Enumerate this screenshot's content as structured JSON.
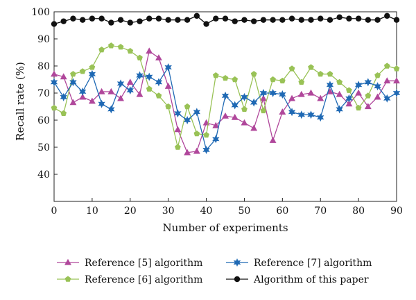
{
  "chart_data": {
    "type": "line",
    "title": "",
    "xlabel": "Number of experiments",
    "ylabel": "Recall rate (%)",
    "xlim": [
      0,
      90
    ],
    "ylim": [
      30,
      100
    ],
    "xticks": [
      0,
      10,
      20,
      30,
      40,
      50,
      60,
      70,
      80,
      90
    ],
    "yticks": [
      40,
      50,
      60,
      70,
      80,
      90,
      100
    ],
    "grid": false,
    "legend_position": "bottom",
    "x": [
      0,
      2.5,
      5,
      7.5,
      10,
      12.5,
      15,
      17.5,
      20,
      22.5,
      25,
      27.5,
      30,
      32.5,
      35,
      37.5,
      40,
      42.5,
      45,
      47.5,
      50,
      52.5,
      55,
      57.5,
      60,
      62.5,
      65,
      67.5,
      70,
      72.5,
      75,
      77.5,
      80,
      82.5,
      85,
      87.5,
      90
    ],
    "series": [
      {
        "name": "Reference [5] algorithm",
        "color": "#b0479b",
        "marker": "triangle",
        "values": [
          77,
          76,
          66.5,
          68.5,
          67,
          70.5,
          70.5,
          68,
          74,
          69.5,
          85.5,
          83,
          72.5,
          56.5,
          48,
          48.5,
          59,
          58,
          61.5,
          61,
          59,
          57,
          68,
          52.5,
          63,
          68,
          69.5,
          70,
          68,
          70.5,
          69.5,
          66,
          70,
          65,
          68.5,
          74.5,
          74.5
        ]
      },
      {
        "name": "Reference [6] algorithm",
        "color": "#99c256",
        "marker": "pentagon",
        "values": [
          64.5,
          62.5,
          77,
          78,
          79.5,
          86,
          87.5,
          87,
          85.5,
          83,
          71.5,
          69,
          65,
          50,
          65,
          55,
          54.5,
          76.5,
          75.5,
          75,
          64,
          77,
          63.5,
          75,
          74.5,
          79,
          74,
          79.5,
          77,
          77,
          74,
          71,
          64.5,
          69,
          76.5,
          80,
          79
        ]
      },
      {
        "name": "Reference [7] algorithm",
        "color": "#1f69b4",
        "marker": "star",
        "values": [
          74,
          68.5,
          74,
          70.5,
          77,
          66,
          64,
          73.5,
          71,
          76.5,
          76,
          74,
          79.5,
          62.5,
          60,
          63,
          49,
          53,
          69,
          65.5,
          68.5,
          66.5,
          70,
          70,
          69.5,
          63,
          62,
          62,
          61,
          73,
          64,
          68,
          73,
          74,
          72.5,
          68,
          70
        ]
      },
      {
        "name": "Algorithm of this paper",
        "color": "#111111",
        "marker": "circle",
        "values": [
          95.5,
          96.5,
          97.5,
          97,
          97.5,
          97.5,
          96,
          97,
          96,
          96.5,
          97.5,
          97.5,
          97,
          97,
          97,
          98.5,
          95.5,
          97.5,
          97.5,
          96.5,
          97,
          96.5,
          97,
          97,
          97,
          97.5,
          97,
          97,
          97.5,
          97,
          98,
          97.5,
          97.5,
          97,
          97,
          98.5,
          97
        ]
      }
    ]
  }
}
